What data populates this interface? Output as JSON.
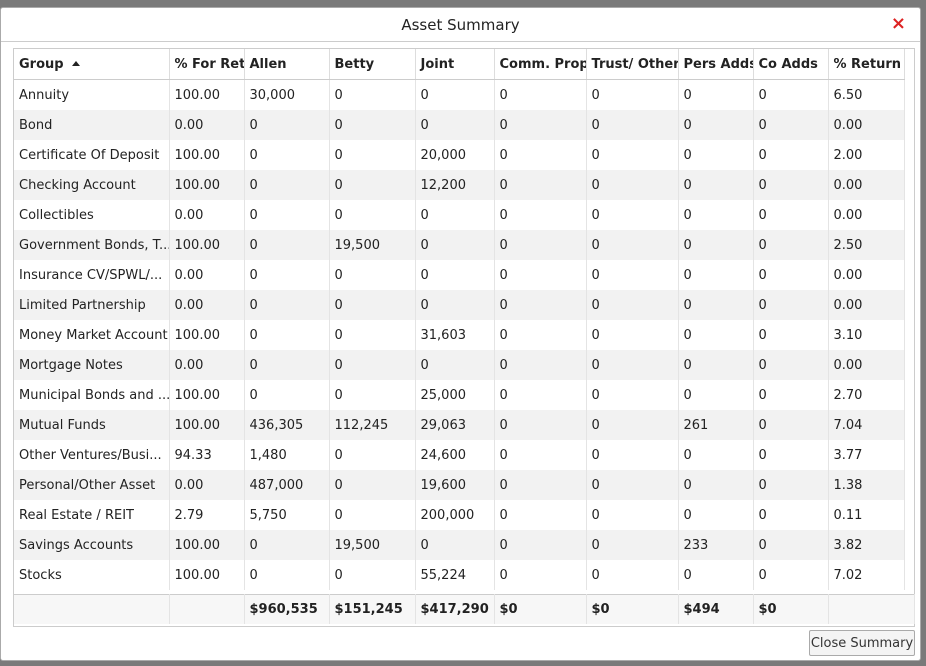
{
  "dialog": {
    "title": "Asset Summary",
    "close_icon": "×",
    "button": "Close Summary"
  },
  "table": {
    "headers": [
      "Group",
      "% For Ret",
      "Allen",
      "Betty",
      "Joint",
      "Comm. Prop",
      "Trust/ Other",
      "Pers Adds",
      "Co Adds",
      "% Return"
    ],
    "rows": [
      [
        "Annuity",
        "100.00",
        "30,000",
        "0",
        "0",
        "0",
        "0",
        "0",
        "0",
        "6.50"
      ],
      [
        "Bond",
        "0.00",
        "0",
        "0",
        "0",
        "0",
        "0",
        "0",
        "0",
        "0.00"
      ],
      [
        "Certificate Of Deposit",
        "100.00",
        "0",
        "0",
        "20,000",
        "0",
        "0",
        "0",
        "0",
        "2.00"
      ],
      [
        "Checking Account",
        "100.00",
        "0",
        "0",
        "12,200",
        "0",
        "0",
        "0",
        "0",
        "0.00"
      ],
      [
        "Collectibles",
        "0.00",
        "0",
        "0",
        "0",
        "0",
        "0",
        "0",
        "0",
        "0.00"
      ],
      [
        "Government Bonds, T...",
        "100.00",
        "0",
        "19,500",
        "0",
        "0",
        "0",
        "0",
        "0",
        "2.50"
      ],
      [
        "Insurance CV/SPWL/...",
        "0.00",
        "0",
        "0",
        "0",
        "0",
        "0",
        "0",
        "0",
        "0.00"
      ],
      [
        "Limited Partnership",
        "0.00",
        "0",
        "0",
        "0",
        "0",
        "0",
        "0",
        "0",
        "0.00"
      ],
      [
        "Money Market Account",
        "100.00",
        "0",
        "0",
        "31,603",
        "0",
        "0",
        "0",
        "0",
        "3.10"
      ],
      [
        "Mortgage Notes",
        "0.00",
        "0",
        "0",
        "0",
        "0",
        "0",
        "0",
        "0",
        "0.00"
      ],
      [
        "Municipal Bonds and ...",
        "100.00",
        "0",
        "0",
        "25,000",
        "0",
        "0",
        "0",
        "0",
        "2.70"
      ],
      [
        "Mutual Funds",
        "100.00",
        "436,305",
        "112,245",
        "29,063",
        "0",
        "0",
        "261",
        "0",
        "7.04"
      ],
      [
        "Other Ventures/Busi...",
        "94.33",
        "1,480",
        "0",
        "24,600",
        "0",
        "0",
        "0",
        "0",
        "3.77"
      ],
      [
        "Personal/Other Asset",
        "0.00",
        "487,000",
        "0",
        "19,600",
        "0",
        "0",
        "0",
        "0",
        "1.38"
      ],
      [
        "Real Estate / REIT",
        "2.79",
        "5,750",
        "0",
        "200,000",
        "0",
        "0",
        "0",
        "0",
        "0.11"
      ],
      [
        "Savings Accounts",
        "100.00",
        "0",
        "19,500",
        "0",
        "0",
        "0",
        "233",
        "0",
        "3.82"
      ],
      [
        "Stocks",
        "100.00",
        "0",
        "0",
        "55,224",
        "0",
        "0",
        "0",
        "0",
        "7.02"
      ]
    ],
    "totals": [
      null,
      null,
      "$960,535",
      "$151,245",
      "$417,290",
      "$0",
      "$0",
      "$494",
      "$0",
      null
    ]
  }
}
